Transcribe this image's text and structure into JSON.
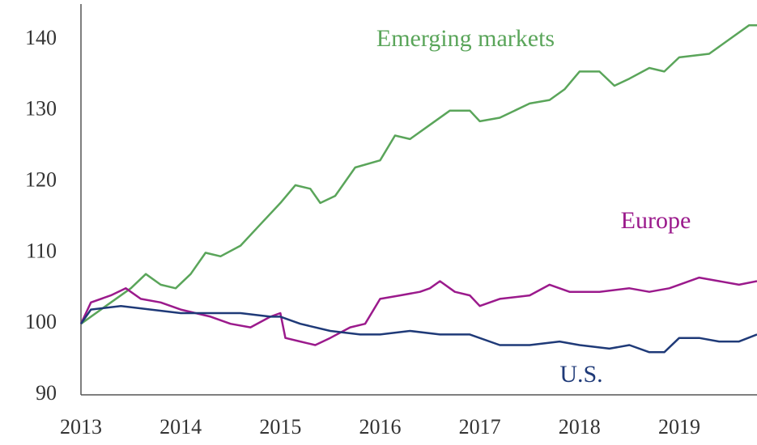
{
  "chart_data": {
    "type": "line",
    "xlim": [
      2013,
      2019.78
    ],
    "xticks": [
      2013,
      2014,
      2015,
      2016,
      2017,
      2018,
      2019
    ],
    "ylim": [
      90,
      145
    ],
    "yticks": [
      90,
      100,
      110,
      120,
      130,
      140
    ],
    "grid": false,
    "series": [
      {
        "name": "Emerging markets",
        "color": "#5aa55a",
        "x": [
          2013.0,
          2013.25,
          2013.5,
          2013.65,
          2013.8,
          2013.95,
          2014.1,
          2014.25,
          2014.4,
          2014.6,
          2014.8,
          2015.0,
          2015.15,
          2015.3,
          2015.4,
          2015.55,
          2015.75,
          2016.0,
          2016.15,
          2016.3,
          2016.5,
          2016.7,
          2016.9,
          2017.0,
          2017.2,
          2017.5,
          2017.7,
          2017.85,
          2018.0,
          2018.2,
          2018.35,
          2018.5,
          2018.7,
          2018.85,
          2019.0,
          2019.3,
          2019.5,
          2019.7,
          2019.78
        ],
        "values": [
          100,
          102.5,
          105,
          107,
          105.5,
          105,
          107,
          110,
          109.5,
          111,
          114,
          117,
          119.5,
          119,
          117,
          118,
          122,
          123,
          126.5,
          126,
          128,
          130,
          130,
          128.5,
          129,
          131,
          131.5,
          133,
          135.5,
          135.5,
          133.5,
          134.5,
          136,
          135.5,
          137.5,
          138,
          140,
          142,
          142
        ]
      },
      {
        "name": "Europe",
        "color": "#9b1a8c",
        "x": [
          2013.0,
          2013.1,
          2013.3,
          2013.45,
          2013.6,
          2013.8,
          2014.0,
          2014.3,
          2014.5,
          2014.7,
          2014.9,
          2015.0,
          2015.05,
          2015.2,
          2015.35,
          2015.5,
          2015.7,
          2015.85,
          2016.0,
          2016.2,
          2016.4,
          2016.5,
          2016.6,
          2016.75,
          2016.9,
          2017.0,
          2017.2,
          2017.5,
          2017.7,
          2017.9,
          2018.2,
          2018.5,
          2018.7,
          2018.9,
          2019.0,
          2019.2,
          2019.4,
          2019.6,
          2019.78
        ],
        "values": [
          100,
          103,
          104,
          105,
          103.5,
          103,
          102,
          101,
          100,
          99.5,
          101,
          101.5,
          98,
          97.5,
          97,
          98,
          99.5,
          100,
          103.5,
          104,
          104.5,
          105,
          106,
          104.5,
          104,
          102.5,
          103.5,
          104,
          105.5,
          104.5,
          104.5,
          105,
          104.5,
          105,
          105.5,
          106.5,
          106,
          105.5,
          106
        ]
      },
      {
        "name": "U.S.",
        "color": "#1f3a78",
        "x": [
          2013.0,
          2013.1,
          2013.4,
          2013.7,
          2014.0,
          2014.3,
          2014.6,
          2014.9,
          2015.0,
          2015.2,
          2015.5,
          2015.8,
          2016.0,
          2016.3,
          2016.6,
          2016.9,
          2017.2,
          2017.5,
          2017.8,
          2018.0,
          2018.3,
          2018.5,
          2018.7,
          2018.85,
          2019.0,
          2019.2,
          2019.4,
          2019.6,
          2019.78
        ],
        "values": [
          100,
          102,
          102.5,
          102,
          101.5,
          101.5,
          101.5,
          101,
          101,
          100,
          99,
          98.5,
          98.5,
          99,
          98.5,
          98.5,
          97,
          97,
          97.5,
          97,
          96.5,
          97,
          96,
          96,
          98,
          98,
          97.5,
          97.5,
          98.5
        ]
      }
    ]
  }
}
